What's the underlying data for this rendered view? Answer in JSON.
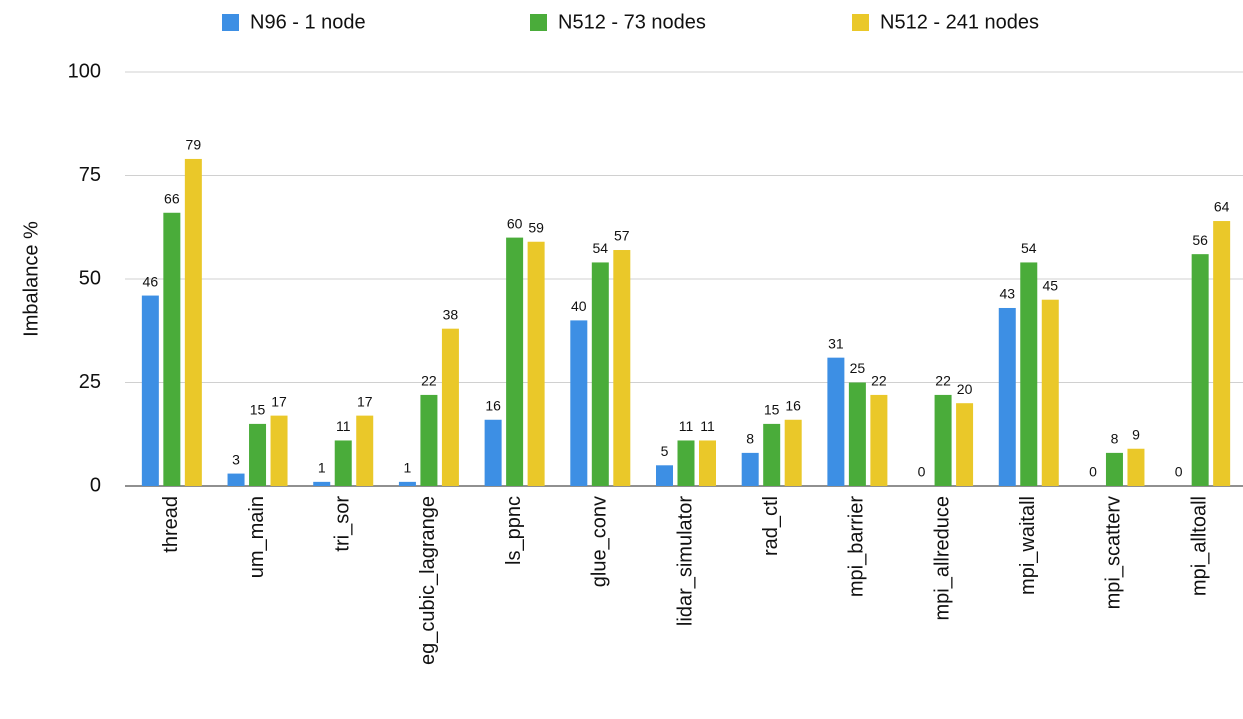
{
  "chart_data": {
    "type": "bar",
    "ylabel": "Imbalance %",
    "categories": [
      "thread",
      "um_main",
      "tri_sor",
      "eg_cubic_lagrange",
      "ls_ppnc",
      "glue_conv",
      "lidar_simulator",
      "rad_ctl",
      "mpi_barrier",
      "mpi_allreduce",
      "mpi_waitall",
      "mpi_scatterv",
      "mpi_alltoall"
    ],
    "series": [
      {
        "name": "N96 - 1 node",
        "color": "#3d8fe4",
        "values": [
          46,
          3,
          1,
          1,
          16,
          40,
          5,
          8,
          31,
          0,
          43,
          0,
          0
        ]
      },
      {
        "name": "N512 - 73 nodes",
        "color": "#4aac3a",
        "values": [
          66,
          15,
          11,
          22,
          60,
          54,
          11,
          15,
          25,
          22,
          54,
          8,
          56
        ]
      },
      {
        "name": "N512 - 241 nodes",
        "color": "#eac829",
        "values": [
          79,
          17,
          17,
          38,
          59,
          57,
          11,
          16,
          22,
          20,
          45,
          9,
          64
        ]
      }
    ],
    "ylim": [
      0,
      100
    ],
    "yticks": [
      0,
      25,
      50,
      75,
      100
    ],
    "grid": true,
    "legend": "top"
  }
}
